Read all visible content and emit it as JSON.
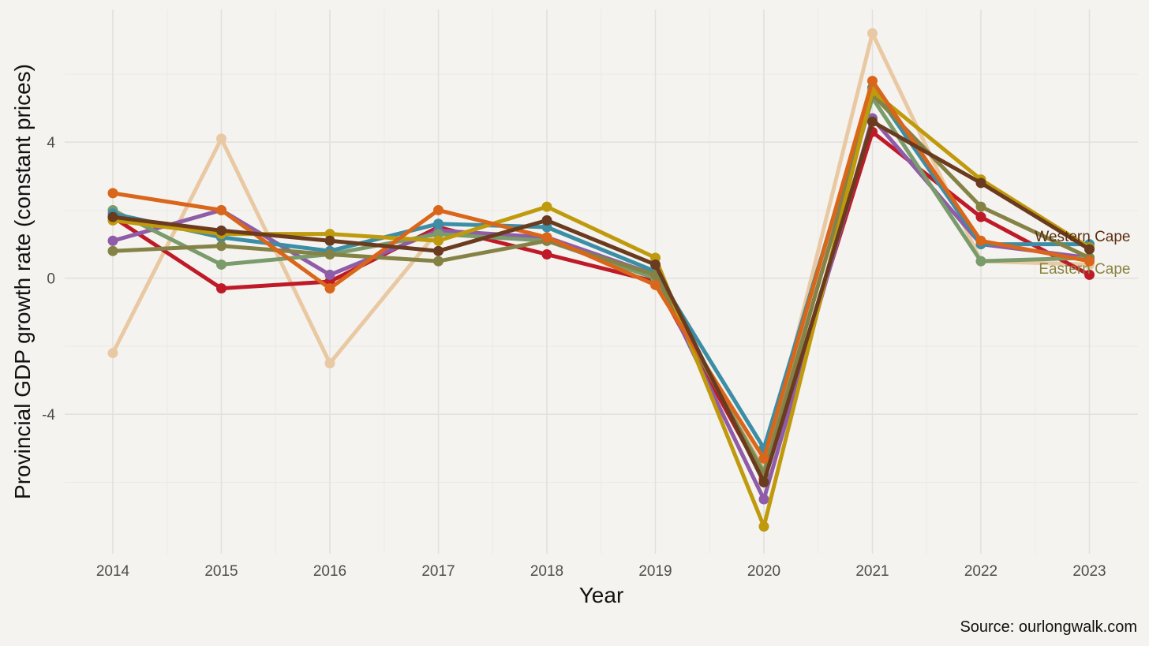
{
  "chart_data": {
    "type": "line",
    "xlabel": "Year",
    "ylabel": "Provincial GDP growth rate (constant prices)",
    "source": "Source: ourlongwalk.com",
    "x": [
      "2014",
      "2015",
      "2016",
      "2017",
      "2018",
      "2019",
      "2020",
      "2021",
      "2022",
      "2023"
    ],
    "ylim": [
      -8.1,
      7.9
    ],
    "yticks": [
      -4,
      0,
      4
    ],
    "grid": true,
    "legend": "none",
    "series": [
      {
        "color": "#e9c9a3",
        "values": [
          -2.2,
          4.1,
          -2.5,
          1.4,
          1.1,
          0.0,
          -5.6,
          7.2,
          0.5,
          0.4
        ]
      },
      {
        "color": "#be1a28",
        "values": [
          1.8,
          -0.3,
          -0.1,
          1.5,
          0.7,
          -0.1,
          -5.9,
          4.3,
          1.8,
          0.1
        ]
      },
      {
        "color": "#8e5ca8",
        "values": [
          1.1,
          2.0,
          0.1,
          1.4,
          1.2,
          0.1,
          -6.5,
          4.7,
          1.0,
          0.6
        ]
      },
      {
        "color": "#7a9b6b",
        "values": [
          2.0,
          0.4,
          0.7,
          1.3,
          1.1,
          0.0,
          -5.7,
          5.3,
          0.5,
          0.6
        ]
      },
      {
        "color": "#3b8ea5",
        "values": [
          1.9,
          1.2,
          0.8,
          1.6,
          1.5,
          0.2,
          -5.0,
          5.6,
          1.0,
          1.0
        ]
      },
      {
        "color": "#858245",
        "name": "Eastern Cape",
        "values": [
          0.8,
          0.95,
          0.7,
          0.5,
          1.1,
          0.1,
          -5.8,
          5.4,
          2.1,
          0.6
        ]
      },
      {
        "color": "#bf9a0c",
        "values": [
          1.7,
          1.3,
          1.3,
          1.1,
          2.1,
          0.6,
          -7.3,
          5.5,
          2.9,
          0.9
        ]
      },
      {
        "color": "#d9661a",
        "values": [
          2.5,
          2.0,
          -0.3,
          2.0,
          1.2,
          -0.2,
          -5.3,
          5.8,
          1.1,
          0.5
        ]
      },
      {
        "color": "#6a3b1e",
        "name": "Western Cape",
        "values": [
          1.8,
          1.4,
          1.1,
          0.8,
          1.7,
          0.4,
          -6.0,
          4.6,
          2.8,
          0.85
        ]
      }
    ],
    "labels": [
      {
        "text": "Western Cape",
        "color": "#5c2d10",
        "x": "2023",
        "y": 1.25
      },
      {
        "text": "Eastern Cape",
        "color": "#8a8440",
        "x": "2023",
        "y": 0.3
      }
    ]
  }
}
